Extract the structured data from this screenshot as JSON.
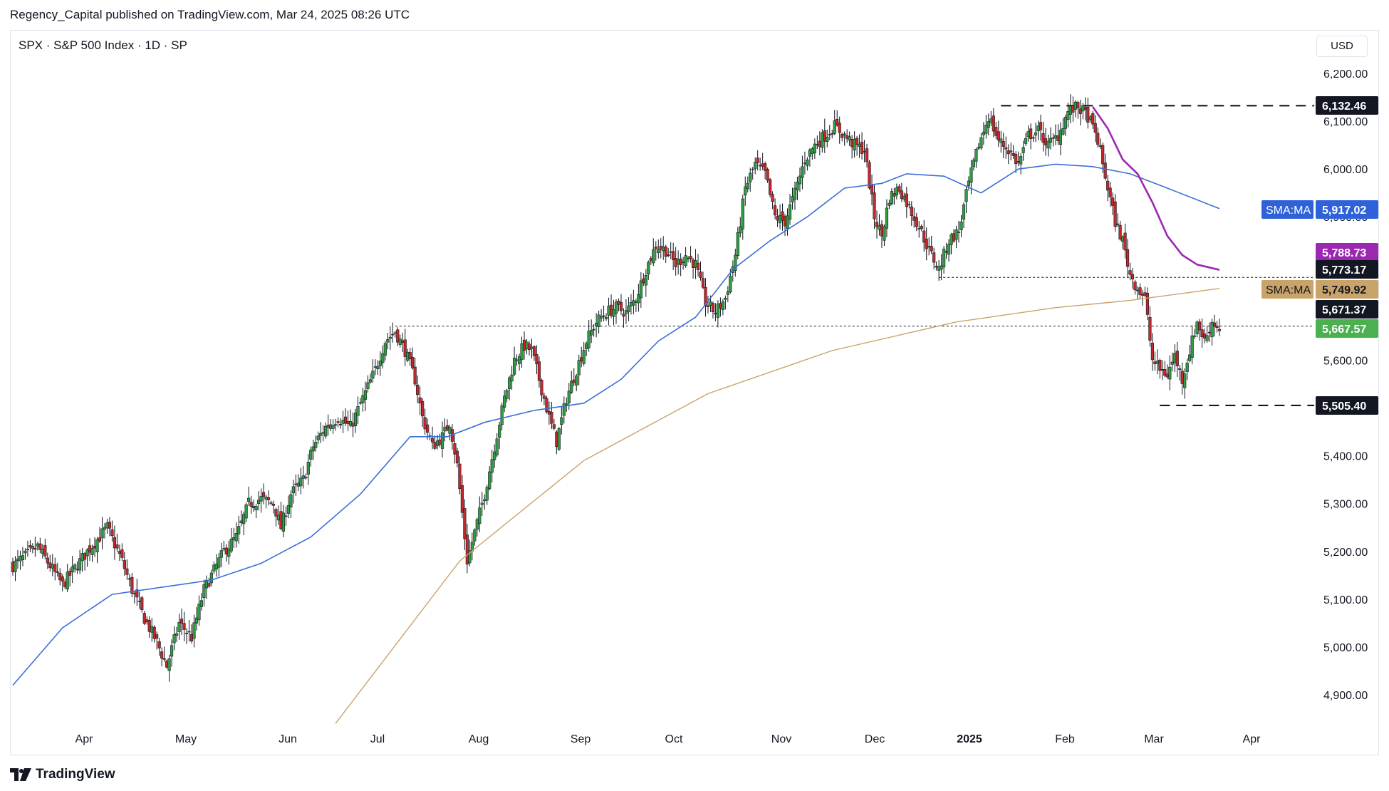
{
  "attribution": "Regency_Capital published on TradingView.com, Mar 24, 2025 08:26 UTC",
  "symbol_line": "SPX · S&P 500 Index · 1D · SP",
  "currency": "USD",
  "brand": "TradingView",
  "colors": {
    "up": "#26a69a",
    "up_fill": "#2e9e3f",
    "down": "#c62828",
    "sma50": "#3b6fd8",
    "sma200": "#c9a36a",
    "sma_purple": "#9c27b0",
    "dark": "#131722",
    "green_label": "#4caf50"
  },
  "chart_data": {
    "type": "candlestick",
    "title": "",
    "ylim": [
      4830,
      6250
    ],
    "x_ticks": [
      "Apr",
      "May",
      "Jun",
      "Jul",
      "Aug",
      "Sep",
      "Oct",
      "Nov",
      "Dec",
      "2025",
      "Feb",
      "Mar",
      "Apr"
    ],
    "y_ticks": [
      "6,200.00",
      "6,100.00",
      "6,000.00",
      "5,900.00",
      "5,800.00",
      "5,700.00",
      "5,600.00",
      "5,500.00",
      "5,400.00",
      "5,300.00",
      "5,200.00",
      "5,100.00",
      "5,000.00",
      "4,900.00"
    ],
    "y_tick_values": [
      6200,
      6100,
      6000,
      5900,
      5800,
      5700,
      5600,
      5500,
      5400,
      5300,
      5200,
      5100,
      5000,
      4900
    ],
    "close_path": [
      [
        0,
        5170
      ],
      [
        10,
        5210
      ],
      [
        20,
        5130
      ],
      [
        30,
        5200
      ],
      [
        38,
        5250
      ],
      [
        44,
        5180
      ],
      [
        48,
        5120
      ],
      [
        53,
        5060
      ],
      [
        58,
        5010
      ],
      [
        62,
        4960
      ],
      [
        67,
        5050
      ],
      [
        72,
        5020
      ],
      [
        77,
        5120
      ],
      [
        81,
        5160
      ],
      [
        85,
        5200
      ],
      [
        90,
        5230
      ],
      [
        95,
        5300
      ],
      [
        100,
        5310
      ],
      [
        105,
        5300
      ],
      [
        108,
        5250
      ],
      [
        112,
        5320
      ],
      [
        117,
        5350
      ],
      [
        121,
        5420
      ],
      [
        126,
        5460
      ],
      [
        131,
        5480
      ],
      [
        136,
        5460
      ],
      [
        141,
        5520
      ],
      [
        146,
        5580
      ],
      [
        150,
        5640
      ],
      [
        154,
        5660
      ],
      [
        158,
        5620
      ],
      [
        162,
        5560
      ],
      [
        165,
        5480
      ],
      [
        169,
        5420
      ],
      [
        173,
        5440
      ],
      [
        176,
        5470
      ],
      [
        179,
        5380
      ],
      [
        183,
        5180
      ],
      [
        186,
        5240
      ],
      [
        190,
        5320
      ],
      [
        194,
        5420
      ],
      [
        198,
        5520
      ],
      [
        202,
        5600
      ],
      [
        206,
        5630
      ],
      [
        209,
        5620
      ],
      [
        212,
        5560
      ],
      [
        216,
        5480
      ],
      [
        219,
        5430
      ],
      [
        223,
        5520
      ],
      [
        227,
        5580
      ],
      [
        231,
        5640
      ],
      [
        235,
        5680
      ],
      [
        239,
        5700
      ],
      [
        243,
        5710
      ],
      [
        247,
        5700
      ],
      [
        251,
        5730
      ],
      [
        255,
        5790
      ],
      [
        259,
        5840
      ],
      [
        263,
        5830
      ],
      [
        267,
        5800
      ],
      [
        271,
        5820
      ],
      [
        275,
        5800
      ],
      [
        279,
        5720
      ],
      [
        283,
        5700
      ],
      [
        287,
        5730
      ],
      [
        291,
        5820
      ],
      [
        295,
        5960
      ],
      [
        299,
        6010
      ],
      [
        303,
        5990
      ],
      [
        307,
        5900
      ],
      [
        311,
        5890
      ],
      [
        315,
        5950
      ],
      [
        319,
        6020
      ],
      [
        323,
        6050
      ],
      [
        327,
        6070
      ],
      [
        331,
        6090
      ],
      [
        335,
        6070
      ],
      [
        339,
        6050
      ],
      [
        343,
        6040
      ],
      [
        347,
        5900
      ],
      [
        350,
        5860
      ],
      [
        353,
        5940
      ],
      [
        357,
        5960
      ],
      [
        361,
        5920
      ],
      [
        365,
        5880
      ],
      [
        369,
        5830
      ],
      [
        373,
        5790
      ],
      [
        377,
        5850
      ],
      [
        381,
        5870
      ],
      [
        385,
        5970
      ],
      [
        389,
        6050
      ],
      [
        393,
        6110
      ],
      [
        397,
        6060
      ],
      [
        401,
        6040
      ],
      [
        405,
        6010
      ],
      [
        409,
        6070
      ],
      [
        413,
        6080
      ],
      [
        417,
        6050
      ],
      [
        421,
        6070
      ],
      [
        425,
        6120
      ],
      [
        429,
        6130
      ],
      [
        433,
        6110
      ],
      [
        437,
        6060
      ],
      [
        441,
        5960
      ],
      [
        444,
        5890
      ],
      [
        447,
        5850
      ],
      [
        450,
        5780
      ],
      [
        453,
        5750
      ],
      [
        456,
        5730
      ],
      [
        459,
        5600
      ],
      [
        462,
        5580
      ],
      [
        465,
        5570
      ],
      [
        468,
        5610
      ],
      [
        471,
        5560
      ],
      [
        474,
        5620
      ],
      [
        477,
        5680
      ],
      [
        480,
        5640
      ],
      [
        483,
        5680
      ],
      [
        486,
        5667
      ]
    ],
    "series": [
      {
        "values": [
          [
            0,
            4920
          ],
          [
            20,
            5040
          ],
          [
            40,
            5110
          ],
          [
            60,
            5125
          ],
          [
            80,
            5140
          ],
          [
            100,
            5175
          ],
          [
            120,
            5230
          ],
          [
            140,
            5320
          ],
          [
            160,
            5440
          ],
          [
            175,
            5440
          ],
          [
            190,
            5470
          ],
          [
            210,
            5495
          ],
          [
            230,
            5510
          ],
          [
            245,
            5560
          ],
          [
            260,
            5640
          ],
          [
            275,
            5690
          ],
          [
            290,
            5790
          ],
          [
            305,
            5850
          ],
          [
            320,
            5900
          ],
          [
            335,
            5960
          ],
          [
            350,
            5970
          ],
          [
            360,
            5990
          ],
          [
            375,
            5985
          ],
          [
            390,
            5950
          ],
          [
            405,
            6000
          ],
          [
            420,
            6010
          ],
          [
            435,
            6005
          ],
          [
            450,
            5990
          ],
          [
            465,
            5960
          ],
          [
            486,
            5917
          ]
        ]
      },
      {
        "values": [
          [
            130,
            4840
          ],
          [
            180,
            5180
          ],
          [
            230,
            5390
          ],
          [
            280,
            5530
          ],
          [
            330,
            5620
          ],
          [
            380,
            5680
          ],
          [
            420,
            5710
          ],
          [
            450,
            5725
          ],
          [
            486,
            5750
          ]
        ]
      },
      {
        "values": [
          [
            435,
            6130
          ],
          [
            441,
            6085
          ],
          [
            447,
            6020
          ],
          [
            453,
            5990
          ],
          [
            459,
            5930
          ],
          [
            465,
            5860
          ],
          [
            471,
            5820
          ],
          [
            477,
            5800
          ],
          [
            486,
            5789
          ]
        ]
      }
    ],
    "horizontal_levels": [
      6132.46,
      5773.17,
      5671.37,
      5505.4
    ],
    "price_labels": [
      {
        "value": 6132.46,
        "text": "6,132.46",
        "style": "dark"
      },
      {
        "value": 5917.02,
        "text": "5,917.02",
        "tag": "SMA:MA",
        "style": "blue"
      },
      {
        "value": 5788.73,
        "text": "5,788.73",
        "style": "purple"
      },
      {
        "value": 5773.17,
        "text": "5,773.17",
        "style": "dark"
      },
      {
        "value": 5749.92,
        "text": "5,749.92",
        "tag": "SMA:MA",
        "style": "tan"
      },
      {
        "value": 5671.37,
        "text": "5,671.37",
        "style": "dark"
      },
      {
        "value": 5667.57,
        "text": "5,667.57",
        "style": "green"
      },
      {
        "value": 5505.4,
        "text": "5,505.40",
        "style": "dark"
      }
    ]
  }
}
